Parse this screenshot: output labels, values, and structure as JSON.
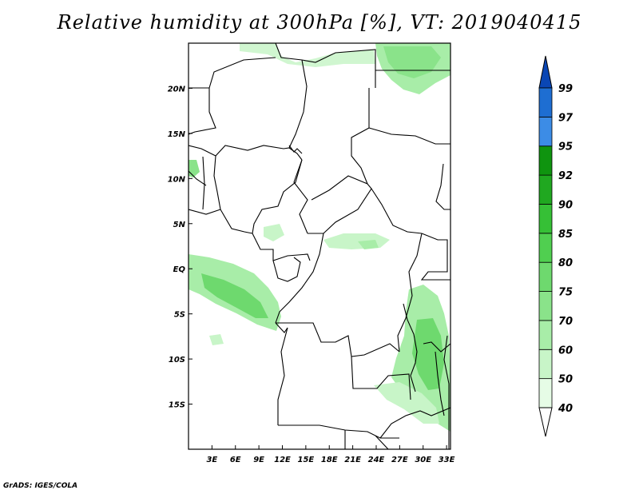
{
  "title": "Relative humidity at 300hPa [%], VT: 2019040415",
  "credit": "GrADS: IGES/COLA",
  "map": {
    "lon_range": [
      0,
      33.5
    ],
    "lat_range": [
      -20,
      25
    ],
    "lon_ticks": [
      {
        "value": 3,
        "label": "3E"
      },
      {
        "value": 6,
        "label": "6E"
      },
      {
        "value": 9,
        "label": "9E"
      },
      {
        "value": 12,
        "label": "12E"
      },
      {
        "value": 15,
        "label": "15E"
      },
      {
        "value": 18,
        "label": "18E"
      },
      {
        "value": 21,
        "label": "21E"
      },
      {
        "value": 24,
        "label": "24E"
      },
      {
        "value": 27,
        "label": "27E"
      },
      {
        "value": 30,
        "label": "30E"
      },
      {
        "value": 33,
        "label": "33E"
      }
    ],
    "lat_ticks": [
      {
        "value": 20,
        "label": "20N"
      },
      {
        "value": 15,
        "label": "15N"
      },
      {
        "value": 10,
        "label": "10N"
      },
      {
        "value": 5,
        "label": "5N"
      },
      {
        "value": 0,
        "label": "EQ"
      },
      {
        "value": -5,
        "label": "5S"
      },
      {
        "value": -10,
        "label": "10S"
      },
      {
        "value": -15,
        "label": "15S"
      }
    ]
  },
  "colorbar": {
    "levels": [
      "40",
      "50",
      "60",
      "70",
      "75",
      "80",
      "85",
      "90",
      "92",
      "95",
      "97",
      "99"
    ],
    "colors": [
      "#e6fce6",
      "#c8f5c8",
      "#a8eda8",
      "#8ae38a",
      "#6ed96e",
      "#50cf50",
      "#36c036",
      "#20a820",
      "#0f940f",
      "#3c8ce6",
      "#1e6ed2",
      "#0a50c0"
    ],
    "arrow_top_color": "#0a46b4"
  }
}
